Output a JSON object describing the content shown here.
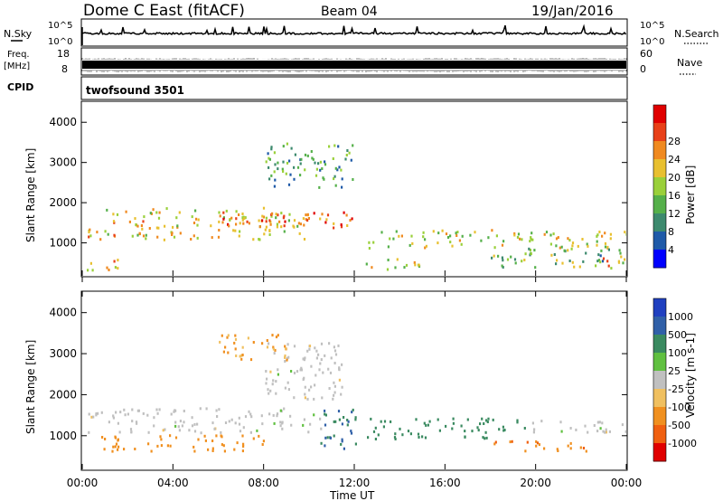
{
  "header": {
    "title": "Dome C East (fitACF)",
    "beam": "Beam 04",
    "date": "19/Jan/2016"
  },
  "top_panels": {
    "nsky_label": "N.Sky",
    "nsky_ticks": [
      "10^5",
      "10^0"
    ],
    "nsearch_label": "N.Search",
    "nsearch_ticks": [
      "10^5",
      "10^0"
    ],
    "freq_label_1": "Freq.",
    "freq_label_2": "[MHz]",
    "freq_ticks": [
      "18",
      "8"
    ],
    "nave_label": "Nave",
    "nave_ticks": [
      "60",
      "0"
    ],
    "cpid_label": "CPID",
    "cpid_value": "twofsound 3501"
  },
  "chart_data": [
    {
      "type": "heatmap",
      "name": "power",
      "ylabel": "Slant Range [km]",
      "xlabel": "Time UT",
      "ylim": [
        180,
        4500
      ],
      "xlim": [
        0,
        24
      ],
      "y_ticks": [
        "1000",
        "2000",
        "3000",
        "4000"
      ],
      "x_ticks": [
        "00:00",
        "04:00",
        "08:00",
        "12:00",
        "16:00",
        "20:00",
        "00:00"
      ],
      "colorbar_label": "Power [dB]",
      "colorbar_ticks": [
        "4",
        "8",
        "12",
        "16",
        "20",
        "24",
        "28"
      ],
      "colorbar_colors": [
        "#0000ff",
        "#1f5aa8",
        "#3d8a6e",
        "#55b04a",
        "#9ad03a",
        "#e8c030",
        "#f08a20",
        "#e84018",
        "#e00000"
      ],
      "regions": [
        {
          "t0": 0.2,
          "t1": 10,
          "r0": 1100,
          "r1": 1900,
          "level": 20
        },
        {
          "t0": 6,
          "t1": 12,
          "r0": 1400,
          "r1": 1800,
          "level": 26
        },
        {
          "t0": 12.5,
          "t1": 24,
          "r0": 900,
          "r1": 1350,
          "level": 18
        },
        {
          "t0": 0.2,
          "t1": 2,
          "r0": 350,
          "r1": 650,
          "level": 22
        },
        {
          "t0": 8,
          "t1": 12,
          "r0": 2400,
          "r1": 3500,
          "level": 12
        },
        {
          "t0": 12.5,
          "t1": 15,
          "r0": 350,
          "r1": 650,
          "level": 20
        },
        {
          "t0": 18,
          "t1": 24,
          "r0": 400,
          "r1": 900,
          "level": 14
        },
        {
          "t0": 22.5,
          "t1": 24,
          "r0": 450,
          "r1": 700,
          "level": 24
        }
      ]
    },
    {
      "type": "heatmap",
      "name": "velocity",
      "ylabel": "Slant Range [km]",
      "xlabel": "Time UT",
      "ylim": [
        180,
        4500
      ],
      "xlim": [
        0,
        24
      ],
      "y_ticks": [
        "1000",
        "2000",
        "3000",
        "4000"
      ],
      "x_ticks": [
        "00:00",
        "04:00",
        "08:00",
        "12:00",
        "16:00",
        "20:00",
        "00:00"
      ],
      "colorbar_label": "Velocity [m s-1]",
      "colorbar_ticks": [
        "1000",
        "500",
        "100",
        "25",
        "-25",
        "-100",
        "-500",
        "-1000"
      ],
      "colorbar_colors": [
        "#2040c0",
        "#3060a8",
        "#3a8a60",
        "#60c040",
        "#c0c0c0",
        "#f0c060",
        "#f09020",
        "#f06010",
        "#e00000"
      ],
      "regions": [
        {
          "t0": 0.2,
          "t1": 10.5,
          "r0": 1100,
          "r1": 1700,
          "level": 0
        },
        {
          "t0": 0.5,
          "t1": 8,
          "r0": 650,
          "r1": 1050,
          "level": -300
        },
        {
          "t0": 8,
          "t1": 11.5,
          "r0": 1900,
          "r1": 3300,
          "level": 0
        },
        {
          "t0": 10.5,
          "t1": 12.2,
          "r0": 700,
          "r1": 1800,
          "level": 500
        },
        {
          "t0": 12.5,
          "t1": 19.5,
          "r0": 950,
          "r1": 1450,
          "level": 300
        },
        {
          "t0": 18,
          "t1": 22.5,
          "r0": 650,
          "r1": 900,
          "level": -400
        },
        {
          "t0": 19.5,
          "t1": 24,
          "r0": 1100,
          "r1": 1400,
          "level": 0
        },
        {
          "t0": 6,
          "t1": 9,
          "r0": 2800,
          "r1": 3500,
          "level": -150
        }
      ]
    }
  ]
}
